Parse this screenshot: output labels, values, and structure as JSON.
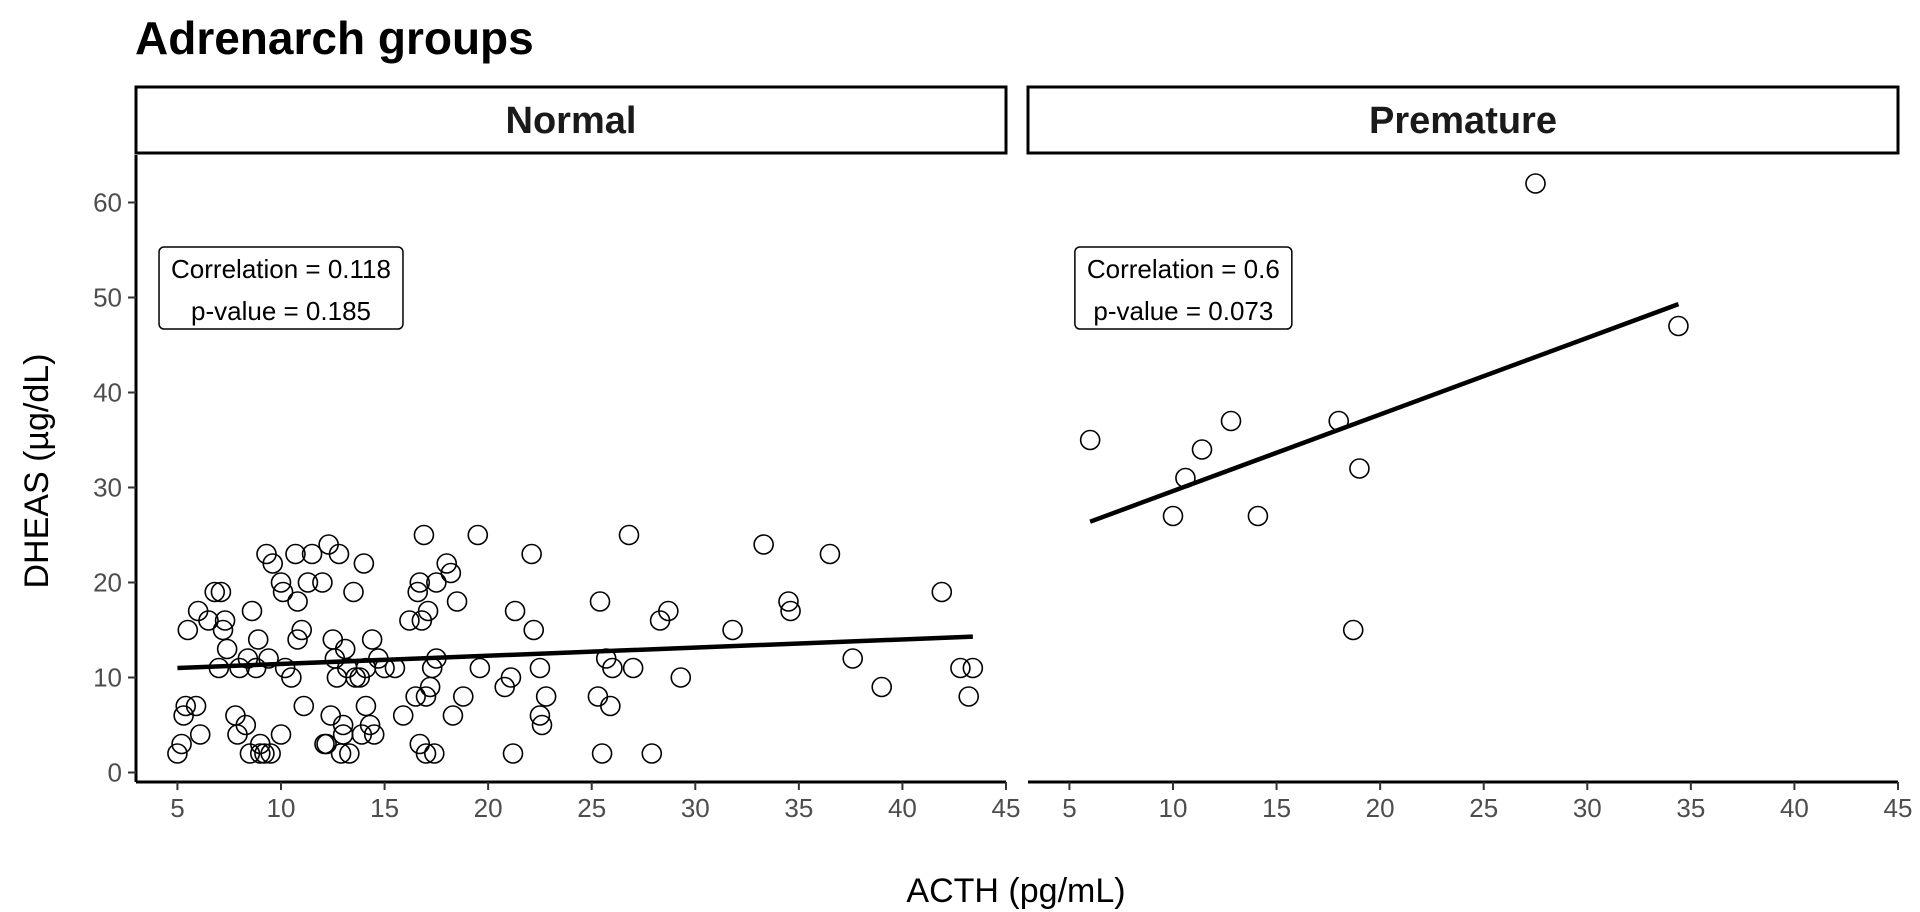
{
  "chart_data": {
    "type": "scatter",
    "title": "Adrenarch groups",
    "xlabel": "ACTH (pg/mL)",
    "ylabel": "DHEAS (µg/dL)",
    "xlim": [
      3,
      45
    ],
    "ylim": [
      -1,
      65
    ],
    "x_ticks": [
      "5",
      "10",
      "15",
      "20",
      "25",
      "30",
      "35",
      "40",
      "45"
    ],
    "y_ticks": [
      "0",
      "10",
      "20",
      "30",
      "40",
      "50",
      "60"
    ],
    "grid": false,
    "legend": "none",
    "panels": [
      {
        "name": "Normal",
        "points": [
          [
            5,
            2
          ],
          [
            5.2,
            3
          ],
          [
            5.3,
            6
          ],
          [
            5.4,
            7
          ],
          [
            5.5,
            15
          ],
          [
            5.9,
            7
          ],
          [
            6,
            17
          ],
          [
            6.1,
            4
          ],
          [
            6.5,
            16
          ],
          [
            6.8,
            19
          ],
          [
            7,
            11
          ],
          [
            7.1,
            19
          ],
          [
            7.2,
            15
          ],
          [
            7.3,
            16
          ],
          [
            7.4,
            13
          ],
          [
            7.8,
            6
          ],
          [
            7.9,
            4
          ],
          [
            8,
            11
          ],
          [
            8.3,
            5
          ],
          [
            8.4,
            12
          ],
          [
            8.5,
            2
          ],
          [
            8.6,
            17
          ],
          [
            8.8,
            11
          ],
          [
            8.9,
            14
          ],
          [
            9,
            3
          ],
          [
            9,
            2
          ],
          [
            9.2,
            2
          ],
          [
            9.3,
            23
          ],
          [
            9.4,
            12
          ],
          [
            9.5,
            2
          ],
          [
            9.6,
            22
          ],
          [
            10,
            20
          ],
          [
            10,
            4
          ],
          [
            10.1,
            19
          ],
          [
            10.2,
            11
          ],
          [
            10.5,
            10
          ],
          [
            10.7,
            23
          ],
          [
            10.8,
            14
          ],
          [
            10.8,
            18
          ],
          [
            11,
            15
          ],
          [
            11.1,
            7
          ],
          [
            11.3,
            20
          ],
          [
            11.5,
            23
          ],
          [
            12,
            20
          ],
          [
            12.1,
            3
          ],
          [
            12.2,
            3
          ],
          [
            12.3,
            24
          ],
          [
            12.4,
            6
          ],
          [
            12.5,
            14
          ],
          [
            12.6,
            12
          ],
          [
            12.7,
            10
          ],
          [
            12.8,
            23
          ],
          [
            12.9,
            2
          ],
          [
            13,
            4
          ],
          [
            13,
            5
          ],
          [
            13.1,
            13
          ],
          [
            13.2,
            11
          ],
          [
            13.3,
            2
          ],
          [
            13.5,
            19
          ],
          [
            13.6,
            10
          ],
          [
            13.8,
            10
          ],
          [
            13.9,
            4
          ],
          [
            14,
            22
          ],
          [
            14.1,
            11
          ],
          [
            14.1,
            7
          ],
          [
            14.3,
            5
          ],
          [
            14.4,
            14
          ],
          [
            14.5,
            4
          ],
          [
            14.7,
            12
          ],
          [
            15,
            11
          ],
          [
            15.5,
            11
          ],
          [
            15.9,
            6
          ],
          [
            16.2,
            16
          ],
          [
            16.5,
            8
          ],
          [
            16.6,
            19
          ],
          [
            16.7,
            20
          ],
          [
            16.7,
            3
          ],
          [
            16.8,
            16
          ],
          [
            16.9,
            25
          ],
          [
            17,
            8
          ],
          [
            17,
            2
          ],
          [
            17.1,
            17
          ],
          [
            17.2,
            9
          ],
          [
            17.3,
            11
          ],
          [
            17.4,
            2
          ],
          [
            17.5,
            12
          ],
          [
            17.5,
            20
          ],
          [
            18,
            22
          ],
          [
            18.2,
            21
          ],
          [
            18.3,
            6
          ],
          [
            18.5,
            18
          ],
          [
            18.8,
            8
          ],
          [
            19.5,
            25
          ],
          [
            19.6,
            11
          ],
          [
            20.8,
            9
          ],
          [
            21.1,
            10
          ],
          [
            21.2,
            2
          ],
          [
            21.3,
            17
          ],
          [
            22.1,
            23
          ],
          [
            22.2,
            15
          ],
          [
            22.5,
            6
          ],
          [
            22.5,
            11
          ],
          [
            22.6,
            5
          ],
          [
            22.8,
            8
          ],
          [
            25.3,
            8
          ],
          [
            25.4,
            18
          ],
          [
            25.5,
            2
          ],
          [
            25.7,
            12
          ],
          [
            25.9,
            7
          ],
          [
            26,
            11
          ],
          [
            26.8,
            25
          ],
          [
            27,
            11
          ],
          [
            27.9,
            2
          ],
          [
            28.3,
            16
          ],
          [
            28.7,
            17
          ],
          [
            29.3,
            10
          ],
          [
            31.8,
            15
          ],
          [
            33.3,
            24
          ],
          [
            34.5,
            18
          ],
          [
            34.6,
            17
          ],
          [
            36.5,
            23
          ],
          [
            37.6,
            12
          ],
          [
            39,
            9
          ],
          [
            41.9,
            19
          ],
          [
            42.8,
            11
          ],
          [
            43.2,
            8
          ],
          [
            43.4,
            11
          ]
        ],
        "fit": {
          "x": [
            5,
            43.4
          ],
          "y": [
            11,
            14.3
          ]
        },
        "annotation": [
          "Correlation = 0.118",
          "p-value = 0.185"
        ],
        "annotation_at": [
          10,
          51
        ]
      },
      {
        "name": "Premature",
        "points": [
          [
            6,
            35
          ],
          [
            10,
            27
          ],
          [
            10.6,
            31
          ],
          [
            11.4,
            34
          ],
          [
            12.8,
            37
          ],
          [
            14.1,
            27
          ],
          [
            18,
            37
          ],
          [
            18.7,
            15
          ],
          [
            19,
            32
          ],
          [
            27.5,
            62
          ],
          [
            34.4,
            47
          ]
        ],
        "fit": {
          "x": [
            6,
            34.4
          ],
          "y": [
            26.4,
            49.3
          ]
        },
        "annotation": [
          "Correlation = 0.6",
          "p-value = 0.073"
        ],
        "annotation_at": [
          10.5,
          51
        ]
      }
    ]
  }
}
